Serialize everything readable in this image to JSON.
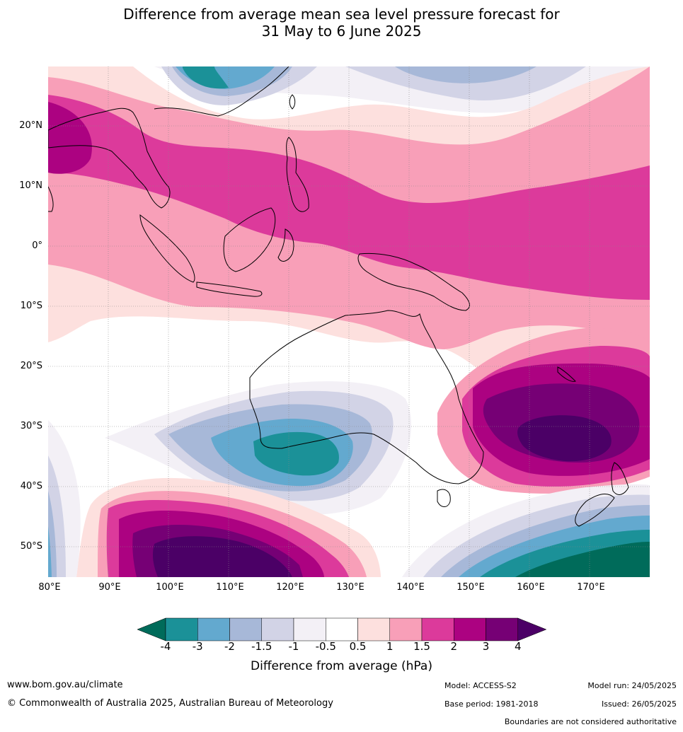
{
  "title_line1": "Difference from average mean sea level pressure forecast for",
  "title_line2": "31 May to 6 June 2025",
  "lat_labels": [
    "20°N",
    "10°N",
    "0°",
    "10°S",
    "20°S",
    "30°S",
    "40°S",
    "50°S"
  ],
  "lon_labels": [
    "80°E",
    "90°E",
    "100°E",
    "110°E",
    "120°E",
    "130°E",
    "140°E",
    "150°E",
    "160°E",
    "170°E"
  ],
  "colorbar": {
    "ticks": [
      "-4",
      "-3",
      "-2",
      "-1.5",
      "-1",
      "-0.5",
      "0.5",
      "1",
      "1.5",
      "2",
      "3",
      "4"
    ],
    "colors": [
      "#006b5a",
      "#1b9198",
      "#63a9cf",
      "#a7b8d8",
      "#d2d3e6",
      "#f3f0f6",
      "#ffffff",
      "#fde0de",
      "#f89fb8",
      "#dc3a9b",
      "#ac0281",
      "#760075",
      "#4b0066"
    ],
    "label": "Difference from average (hPa)"
  },
  "footer": {
    "website": "www.bom.gov.au/climate",
    "copyright": "© Commonwealth of Australia 2025, Australian Bureau of Meteorology",
    "model": "Model: ACCESS-S2",
    "base_period": "Base period: 1981-2018",
    "model_run": "Model run: 24/05/2025",
    "issued": "Issued: 26/05/2025",
    "boundaries": "Boundaries are not considered authoritative"
  }
}
